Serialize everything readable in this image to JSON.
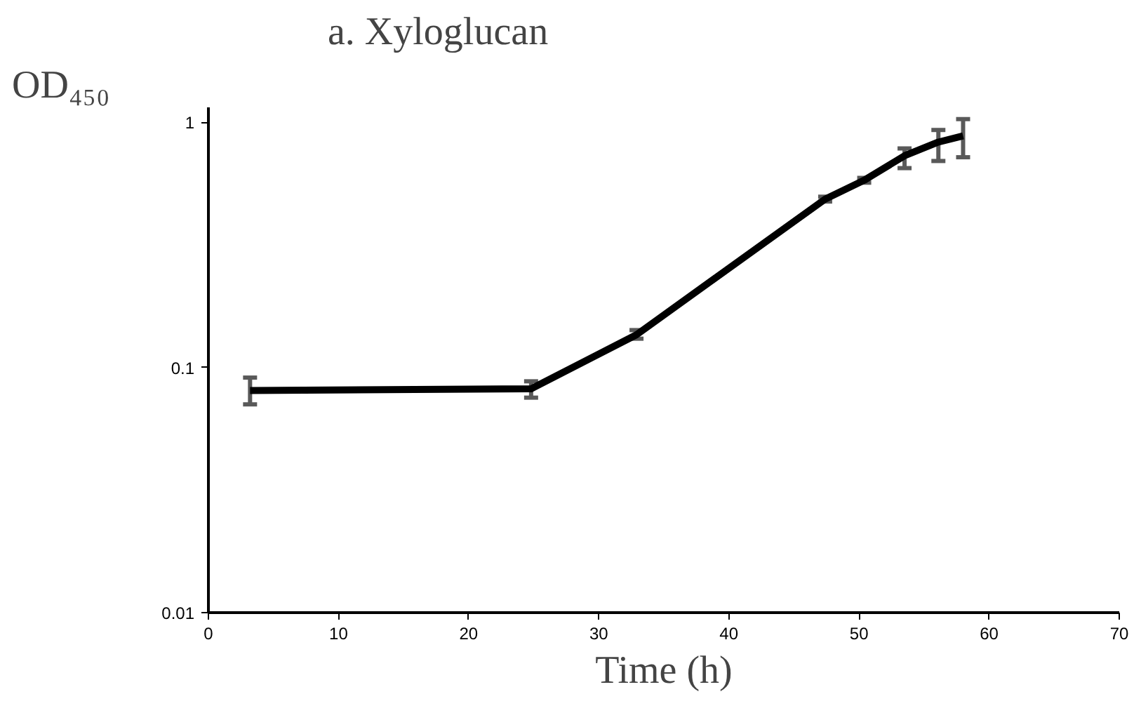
{
  "chart_data": {
    "type": "line",
    "title": "a. Xyloglucan",
    "xlabel": "Time (h)",
    "ylabel": "OD₄₅₀",
    "x": [
      3.2,
      24.8,
      32.9,
      47.4,
      50.4,
      53.5,
      56.1,
      58.0
    ],
    "series": [
      {
        "color": "#000000",
        "values": [
          0.0805,
          0.0818,
          0.136,
          0.486,
          0.58,
          0.73,
          0.83,
          0.88
        ],
        "errors": [
          [
            0.0707,
            0.0909
          ],
          [
            0.0753,
            0.0878
          ],
          [
            0.131,
            0.142
          ],
          [
            0.475,
            0.497
          ],
          [
            0.567,
            0.593
          ],
          [
            0.65,
            0.782
          ],
          [
            0.695,
            0.93
          ],
          [
            0.72,
            1.03
          ]
        ]
      }
    ],
    "xlim": [
      0,
      70
    ],
    "xticks": [
      0,
      10,
      20,
      30,
      40,
      50,
      60,
      70
    ],
    "ylim": [
      0.01,
      1.15
    ],
    "yticks": [
      0.01,
      0.1,
      1
    ],
    "log": "y",
    "grid": false,
    "marker": "none",
    "line_style": "solid"
  }
}
